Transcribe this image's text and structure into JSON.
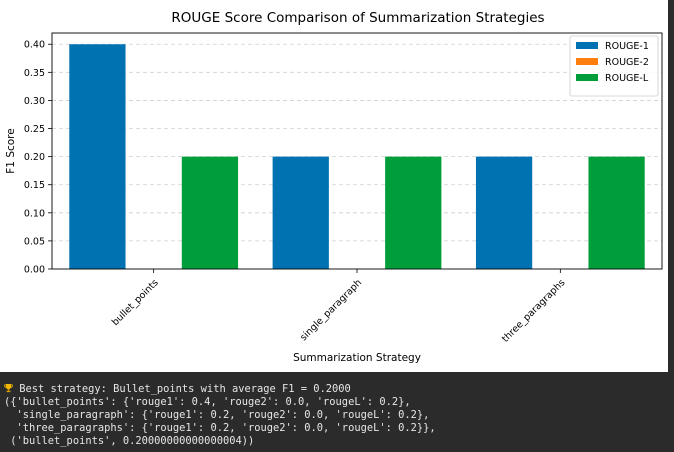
{
  "chart_data": {
    "type": "bar",
    "title": "ROUGE Score Comparison of Summarization Strategies",
    "xlabel": "Summarization Strategy",
    "ylabel": "F1 Score",
    "categories": [
      "bullet_points",
      "single_paragraph",
      "three_paragraphs"
    ],
    "series": [
      {
        "name": "ROUGE-1",
        "values": [
          0.4,
          0.2,
          0.2
        ],
        "color": "#0072B2"
      },
      {
        "name": "ROUGE-2",
        "values": [
          0.0,
          0.0,
          0.0
        ],
        "color": "#FF7F0E"
      },
      {
        "name": "ROUGE-L",
        "values": [
          0.2,
          0.2,
          0.2
        ],
        "color": "#009E3A"
      }
    ],
    "ylim": [
      0,
      0.42
    ],
    "yticks": [
      "0.00",
      "0.05",
      "0.10",
      "0.15",
      "0.20",
      "0.25",
      "0.30",
      "0.35",
      "0.40"
    ],
    "grid": "y-dashed",
    "legend_position": "top-right"
  },
  "console": {
    "icon": "trophy-icon",
    "lines": [
      "Best strategy: Bullet_points with average F1 = 0.2000",
      "({'bullet_points': {'rouge1': 0.4, 'rouge2': 0.0, 'rougeL': 0.2},",
      "  'single_paragraph': {'rouge1': 0.2, 'rouge2': 0.0, 'rougeL': 0.2},",
      "  'three_paragraphs': {'rouge1': 0.2, 'rouge2': 0.0, 'rougeL': 0.2}},",
      " ('bullet_points', 0.20000000000000004))"
    ]
  }
}
